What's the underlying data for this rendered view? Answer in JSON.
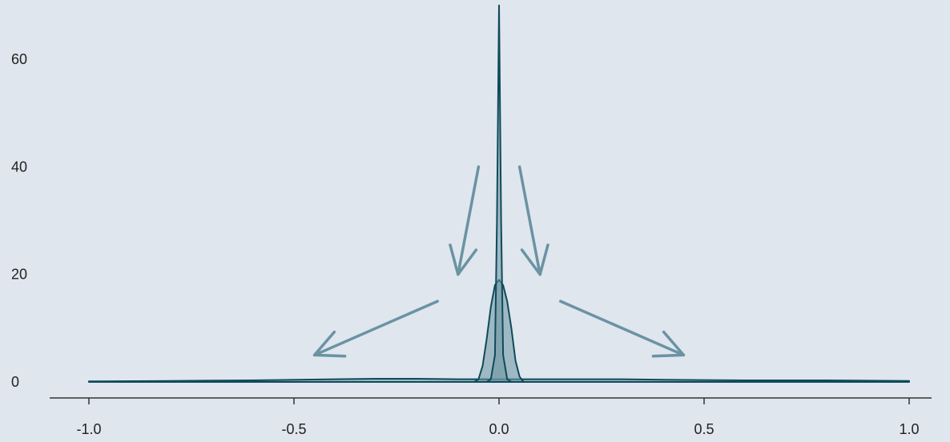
{
  "chart_data": {
    "type": "area",
    "title": "",
    "xlabel": "",
    "ylabel": "",
    "xlim": [
      -1.05,
      1.05
    ],
    "ylim": [
      0,
      70
    ],
    "x_ticks": [
      -1.0,
      -0.5,
      0.0,
      0.5,
      1.0
    ],
    "x_tick_labels": [
      "-1.0",
      "-0.5",
      "0.0",
      "0.5",
      "1.0"
    ],
    "y_ticks": [
      0,
      20,
      40,
      60
    ],
    "y_tick_labels": [
      "0",
      "20",
      "40",
      "60"
    ],
    "grid": false,
    "legend": "none",
    "series": [
      {
        "x": [
          -1.0,
          -0.8,
          -0.6,
          -0.4,
          -0.3,
          -0.2,
          -0.1,
          0.0,
          0.1,
          0.2,
          0.3,
          0.4,
          0.6,
          0.8,
          1.0
        ],
        "y": [
          0.1,
          0.2,
          0.3,
          0.5,
          0.6,
          0.6,
          0.5,
          0.5,
          0.5,
          0.5,
          0.5,
          0.4,
          0.3,
          0.3,
          0.2
        ],
        "fill": "#6a93a3",
        "stroke": "#0f4a5a"
      },
      {
        "x": [
          -0.06,
          -0.05,
          -0.04,
          -0.03,
          -0.02,
          -0.01,
          0.0,
          0.01,
          0.02,
          0.03,
          0.04,
          0.05,
          0.06
        ],
        "y": [
          0.0,
          0.5,
          3.0,
          8.0,
          14.0,
          18.0,
          19.0,
          18.0,
          15.0,
          10.0,
          4.0,
          1.0,
          0.0
        ],
        "fill": "#6a93a3",
        "stroke": "#0f4a5a"
      },
      {
        "x": [
          -0.03,
          -0.02,
          -0.01,
          -0.005,
          0.0,
          0.005,
          0.01,
          0.02,
          0.03
        ],
        "y": [
          0.0,
          0.5,
          5.0,
          30.0,
          70.0,
          30.0,
          5.0,
          0.5,
          0.0
        ],
        "fill": "#6a93a3",
        "stroke": "#0f4a5a"
      }
    ],
    "annotations": [
      {
        "type": "arrow",
        "from": [
          -0.05,
          40
        ],
        "to": [
          -0.1,
          20
        ],
        "color": "#6a93a3"
      },
      {
        "type": "arrow",
        "from": [
          0.05,
          40
        ],
        "to": [
          0.1,
          20
        ],
        "color": "#6a93a3"
      },
      {
        "type": "arrow",
        "from": [
          -0.15,
          15
        ],
        "to": [
          -0.45,
          5
        ],
        "color": "#6a93a3"
      },
      {
        "type": "arrow",
        "from": [
          0.15,
          15
        ],
        "to": [
          0.45,
          5
        ],
        "color": "#6a93a3"
      }
    ]
  }
}
